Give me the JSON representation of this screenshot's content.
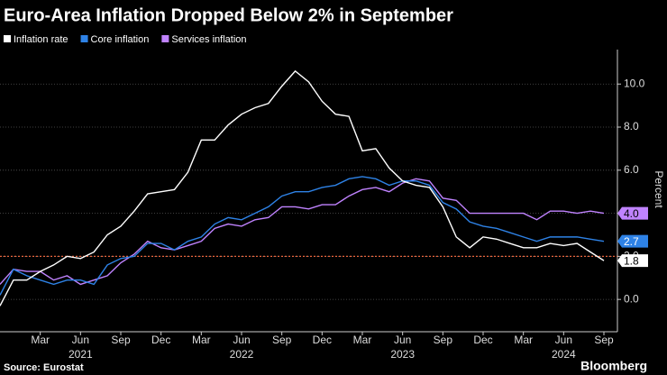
{
  "chart_data": {
    "type": "line",
    "title": "Euro-Area Inflation Dropped Below 2% in September",
    "y_axis_label": "Percent",
    "source": "Source: Eurostat",
    "brand": "Bloomberg",
    "categories": [
      null,
      null,
      null,
      "Mar",
      null,
      null,
      "Jun",
      null,
      null,
      "Sep",
      null,
      null,
      "Dec",
      null,
      null,
      "Mar",
      null,
      null,
      "Jun",
      null,
      null,
      "Sep",
      null,
      null,
      "Dec",
      null,
      null,
      "Mar",
      null,
      null,
      "Jun",
      null,
      null,
      "Sep",
      null,
      null,
      "Dec",
      null,
      null,
      "Mar",
      null,
      null,
      "Jun",
      null,
      null,
      "Sep"
    ],
    "x_year_labels": [
      "2021",
      "2022",
      "2023",
      "2024"
    ],
    "ylim": [
      -1.5,
      11.6
    ],
    "yticks": [
      {
        "value": 0,
        "label": "0.0"
      },
      {
        "value": 2,
        "label": "2.0"
      },
      {
        "value": 4,
        "label": "4.0"
      },
      {
        "value": 6,
        "label": "6.0"
      },
      {
        "value": 8,
        "label": "8.0"
      },
      {
        "value": 10,
        "label": "10.0"
      }
    ],
    "grid": true,
    "reference_line": {
      "value": 2,
      "color": "#e8643c"
    },
    "series": [
      {
        "name": "Inflation rate",
        "color": "#ffffff",
        "values": [
          -0.3,
          0.9,
          0.9,
          1.3,
          1.6,
          2.0,
          1.9,
          2.2,
          3.0,
          3.4,
          4.1,
          4.9,
          5.0,
          5.1,
          5.9,
          7.4,
          7.4,
          8.1,
          8.6,
          8.9,
          9.1,
          9.9,
          10.6,
          10.1,
          9.2,
          8.6,
          8.5,
          6.9,
          7.0,
          6.1,
          5.5,
          5.3,
          5.2,
          4.3,
          2.9,
          2.4,
          2.9,
          2.8,
          2.6,
          2.4,
          2.4,
          2.6,
          2.5,
          2.6,
          2.2,
          1.8
        ],
        "value_labels": [
          null,
          null,
          null,
          null,
          null,
          null,
          null,
          null,
          null,
          null,
          null,
          null,
          null,
          null,
          null,
          null,
          null,
          null,
          null,
          null,
          null,
          null,
          null,
          null,
          null,
          null,
          null,
          null,
          null,
          null,
          null,
          null,
          null,
          null,
          null,
          null,
          null,
          null,
          null,
          null,
          null,
          null,
          null,
          null,
          null,
          "1.8"
        ]
      },
      {
        "name": "Core inflation",
        "color": "#2e82e6",
        "values": [
          0.2,
          1.4,
          1.1,
          0.9,
          0.7,
          0.9,
          0.9,
          0.7,
          1.6,
          1.9,
          2.0,
          2.6,
          2.6,
          2.3,
          2.7,
          2.9,
          3.5,
          3.8,
          3.7,
          4.0,
          4.3,
          4.8,
          5.0,
          5.0,
          5.2,
          5.3,
          5.6,
          5.7,
          5.6,
          5.3,
          5.5,
          5.5,
          5.3,
          4.5,
          4.2,
          3.6,
          3.4,
          3.3,
          3.1,
          2.9,
          2.7,
          2.9,
          2.9,
          2.9,
          2.8,
          2.7
        ],
        "value_labels": [
          null,
          null,
          null,
          null,
          null,
          null,
          null,
          null,
          null,
          null,
          null,
          null,
          null,
          null,
          null,
          null,
          null,
          null,
          null,
          null,
          null,
          null,
          null,
          null,
          null,
          null,
          null,
          null,
          null,
          null,
          null,
          null,
          null,
          null,
          null,
          null,
          null,
          null,
          null,
          null,
          null,
          null,
          null,
          null,
          null,
          "2.7"
        ]
      },
      {
        "name": "Services inflation",
        "color": "#c083ff",
        "values": [
          0.7,
          1.4,
          1.3,
          1.3,
          0.9,
          1.1,
          0.7,
          0.9,
          1.1,
          1.7,
          2.1,
          2.7,
          2.4,
          2.3,
          2.5,
          2.7,
          3.3,
          3.5,
          3.4,
          3.7,
          3.8,
          4.3,
          4.3,
          4.2,
          4.4,
          4.4,
          4.8,
          5.1,
          5.2,
          5.0,
          5.4,
          5.6,
          5.5,
          4.7,
          4.6,
          4.0,
          4.0,
          4.0,
          4.0,
          4.0,
          3.7,
          4.1,
          4.1,
          4.0,
          4.1,
          4.0
        ],
        "value_labels": [
          null,
          null,
          null,
          null,
          null,
          null,
          null,
          null,
          null,
          null,
          null,
          null,
          null,
          null,
          null,
          null,
          null,
          null,
          null,
          null,
          null,
          null,
          null,
          null,
          null,
          null,
          null,
          null,
          null,
          null,
          null,
          null,
          null,
          null,
          null,
          null,
          null,
          null,
          null,
          null,
          null,
          null,
          null,
          null,
          null,
          "4.0"
        ]
      }
    ]
  }
}
